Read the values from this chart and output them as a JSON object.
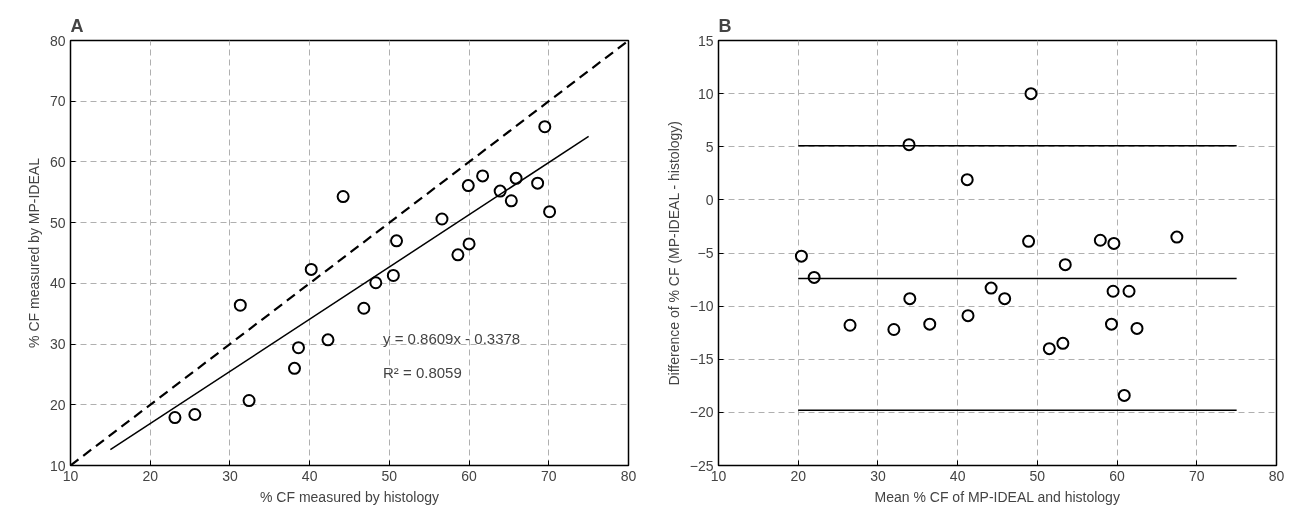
{
  "chart_data": [
    {
      "type": "scatter",
      "title": "A",
      "xlabel": "% CF measured by histology",
      "ylabel": "% CF measured by MP-IDEAL",
      "xlim": [
        10,
        80
      ],
      "ylim": [
        10,
        80
      ],
      "xticks": [
        10,
        20,
        30,
        40,
        50,
        60,
        70,
        80
      ],
      "yticks": [
        10,
        20,
        30,
        40,
        50,
        60,
        70,
        80
      ],
      "grid": true,
      "annotations": [
        "y = 0.8609x - 0.3378",
        "R² = 0.8059"
      ],
      "series": [
        {
          "marker": "circle",
          "color": "#000000",
          "x": [
            23.1,
            25.6,
            31.3,
            32.4,
            38.1,
            38.6,
            40.2,
            42.3,
            44.2,
            46.8,
            48.3,
            50.5,
            50.9,
            56.6,
            58.6,
            59.9,
            60.0,
            61.7,
            63.9,
            65.3,
            65.9,
            68.6,
            69.5,
            70.1
          ],
          "values": [
            17.9,
            18.4,
            36.4,
            20.7,
            26.0,
            29.4,
            42.3,
            30.7,
            54.3,
            35.9,
            40.1,
            41.3,
            47.0,
            50.6,
            44.7,
            56.1,
            46.5,
            57.7,
            55.2,
            53.6,
            57.3,
            56.5,
            65.8,
            51.8
          ]
        },
        {
          "type": "line",
          "color": "#000000",
          "line_style": "dashed",
          "x": [
            10,
            80
          ],
          "values": [
            10,
            80
          ]
        },
        {
          "type": "line",
          "color": "#000000",
          "line_style": "solid",
          "x": [
            15,
            75
          ],
          "values": [
            12.6,
            64.2
          ]
        }
      ]
    },
    {
      "type": "scatter",
      "title": "B",
      "xlabel": "Mean % CF of MP-IDEAL and histology",
      "ylabel": "Difference of % CF (MP-IDEAL - histology)",
      "xlim": [
        10,
        80
      ],
      "ylim": [
        -25,
        15
      ],
      "xticks": [
        10,
        20,
        30,
        40,
        50,
        60,
        70,
        80
      ],
      "yticks": [
        -25,
        -20,
        -15,
        -10,
        -5,
        0,
        5,
        10,
        15
      ],
      "grid": true,
      "series": [
        {
          "marker": "circle",
          "color": "#000000",
          "x": [
            20.4,
            22.0,
            26.5,
            32.0,
            33.9,
            34.0,
            36.5,
            41.2,
            41.3,
            44.2,
            45.9,
            48.9,
            49.2,
            51.5,
            53.2,
            53.5,
            57.9,
            59.3,
            59.5,
            59.6,
            60.9,
            61.5,
            62.5,
            67.5
          ],
          "values": [
            -5.3,
            -7.3,
            -11.8,
            -12.2,
            5.2,
            -9.3,
            -11.7,
            1.9,
            -10.9,
            -8.3,
            -9.3,
            -3.9,
            10.0,
            -14.0,
            -13.5,
            -6.1,
            -3.8,
            -11.7,
            -8.6,
            -4.1,
            -18.4,
            -8.6,
            -12.1,
            -3.5
          ]
        },
        {
          "type": "line",
          "color": "#000000",
          "line_style": "solid",
          "x": [
            20,
            75
          ],
          "values": [
            5.1,
            5.1
          ]
        },
        {
          "type": "line",
          "color": "#000000",
          "line_style": "solid",
          "x": [
            20,
            75
          ],
          "values": [
            -7.4,
            -7.4
          ]
        },
        {
          "type": "line",
          "color": "#000000",
          "line_style": "solid",
          "x": [
            20,
            75
          ],
          "values": [
            -19.8,
            -19.8
          ]
        }
      ]
    }
  ]
}
